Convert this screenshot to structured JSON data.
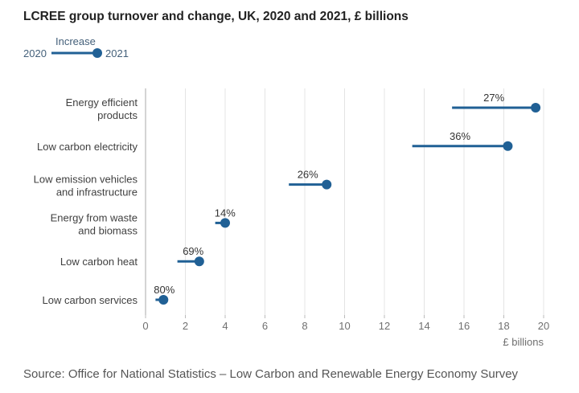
{
  "chart_data": {
    "type": "dumbbell",
    "title": "LCREE group turnover and change, UK, 2020 and 2021, £ billions",
    "legend": {
      "label": "Increase",
      "start_label": "2020",
      "end_label": "2021",
      "placement": "top-left"
    },
    "categories": [
      [
        "Energy efficient",
        "products"
      ],
      [
        "Low carbon electricity"
      ],
      [
        "Low emission vehicles",
        "and infrastructure"
      ],
      [
        "Energy from waste",
        "and biomass"
      ],
      [
        "Low carbon heat"
      ],
      [
        "Low carbon services"
      ]
    ],
    "series": [
      {
        "name": "2020",
        "values": [
          15.4,
          13.4,
          7.2,
          3.5,
          1.6,
          0.5
        ]
      },
      {
        "name": "2021",
        "values": [
          19.6,
          18.2,
          9.1,
          4.0,
          2.7,
          0.9
        ]
      }
    ],
    "change_labels": [
      "27%",
      "36%",
      "26%",
      "14%",
      "69%",
      "80%"
    ],
    "xlabel": "£ billions",
    "xlim": [
      0,
      20
    ],
    "xticks": [
      "0",
      "2",
      "4",
      "6",
      "8",
      "10",
      "12",
      "14",
      "16",
      "18",
      "20"
    ],
    "grid": true,
    "color": "#206095"
  },
  "source": "Source: Office for National Statistics – Low Carbon and Renewable Energy Economy Survey"
}
